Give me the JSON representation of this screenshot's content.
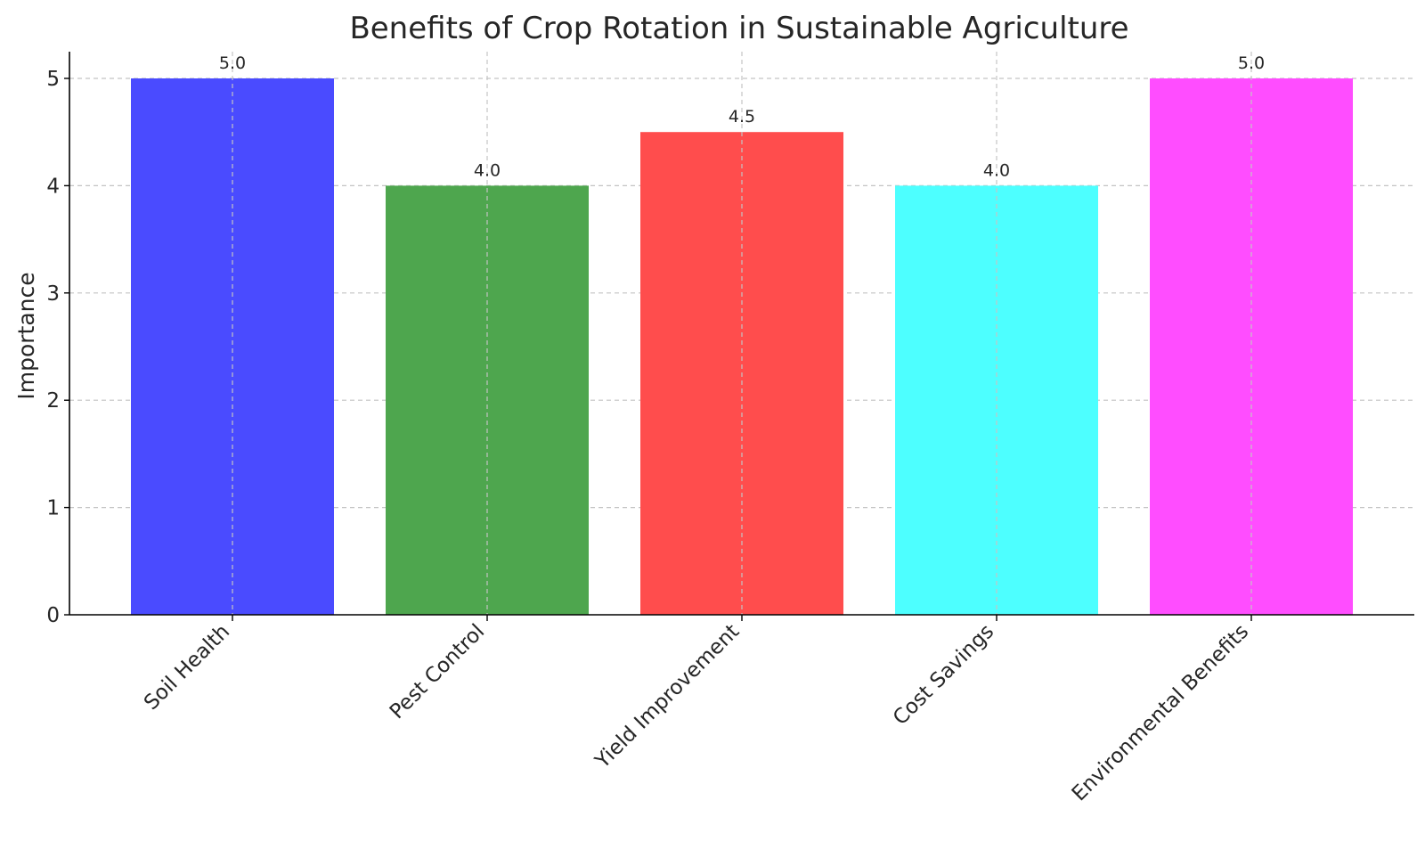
{
  "chart_data": {
    "type": "bar",
    "title": "Benefits of Crop Rotation in Sustainable Agriculture",
    "xlabel": "",
    "ylabel": "Importance",
    "categories": [
      "Soil Health",
      "Pest Control",
      "Yield Improvement",
      "Cost Savings",
      "Environmental Benefits"
    ],
    "values": [
      5.0,
      4.0,
      4.5,
      4.0,
      5.0
    ],
    "data_labels": [
      "5.0",
      "4.0",
      "4.5",
      "4.0",
      "5.0"
    ],
    "colors": [
      "#4a4bff",
      "#4ea64e",
      "#ff4d4d",
      "#4dffff",
      "#ff4dff"
    ],
    "yticks": [
      0,
      1,
      2,
      3,
      4,
      5
    ],
    "ylim": [
      0,
      5.25
    ],
    "grid": true,
    "legend": "none"
  }
}
